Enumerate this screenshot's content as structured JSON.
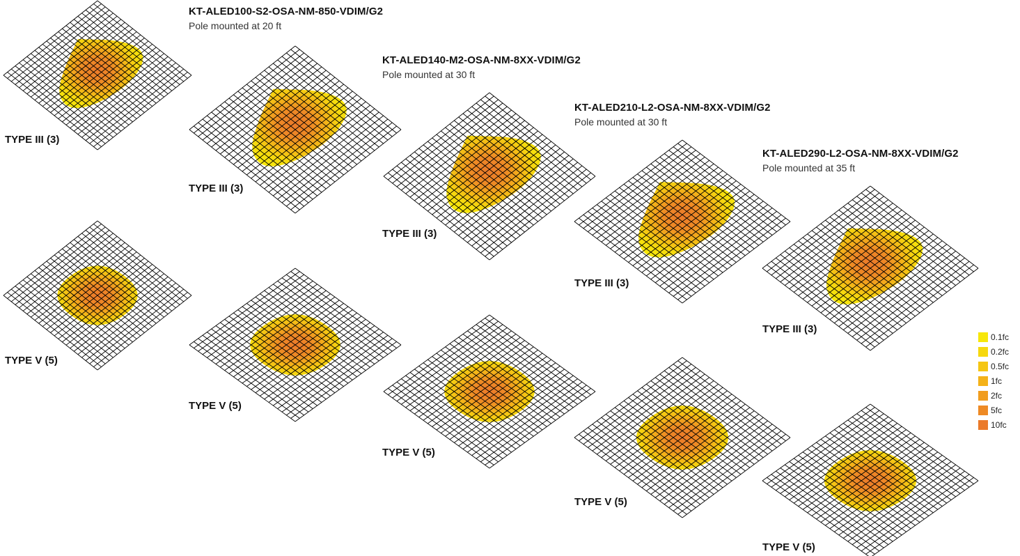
{
  "products": [
    {
      "title": "KT-ALED100-S2-OSA-NM-850-VDIM/G2",
      "mount": "Pole mounted at 20 ft",
      "type3_label": "TYPE III (3)",
      "type5_label": "TYPE V (5)"
    },
    {
      "title": "KT-ALED140-M2-OSA-NM-8XX-VDIM/G2",
      "mount": "Pole mounted at 30 ft",
      "type3_label": "TYPE III (3)",
      "type5_label": "TYPE V (5)"
    },
    {
      "title": "KT-ALED210-L2-OSA-NM-8XX-VDIM/G2",
      "mount": "Pole mounted at 30 ft",
      "type3_label": "TYPE III (3)",
      "type5_label": "TYPE V (5)"
    },
    {
      "title": "KT-ALED290-L2-OSA-NM-8XX-VDIM/G2",
      "mount": "Pole mounted at 35 ft",
      "type3_label": "TYPE III (3)",
      "type5_label": "TYPE V (5)"
    }
  ],
  "legend": [
    {
      "label": "0.1fc",
      "color": "#f7e70a"
    },
    {
      "label": "0.2fc",
      "color": "#f6d80e"
    },
    {
      "label": "0.5fc",
      "color": "#f5c613"
    },
    {
      "label": "1fc",
      "color": "#f4b219"
    },
    {
      "label": "2fc",
      "color": "#f19d1f"
    },
    {
      "label": "5fc",
      "color": "#ee8a25"
    },
    {
      "label": "10fc",
      "color": "#eb7a2a"
    }
  ],
  "colors": {
    "grid_line": "#000000",
    "light_outer": "#f7e70a",
    "light_core": "#eb7a2a"
  }
}
